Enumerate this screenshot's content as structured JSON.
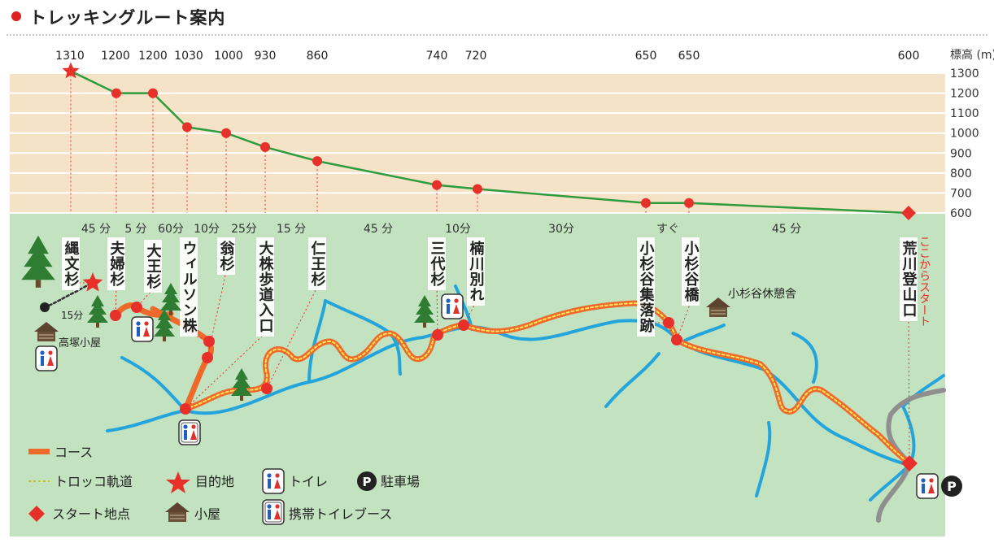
{
  "title": "トレッキングルート案内",
  "colors": {
    "accent_red": "#e8302a",
    "profile_line": "#2e9b3c",
    "sky": "#f5e3c8",
    "ground": "#c2e2c0",
    "river": "#23a5dc",
    "course": "#ee6a2a"
  },
  "chart_data": {
    "type": "line",
    "title": "",
    "ylabel": "標高 (m)",
    "ylim": [
      600,
      1300
    ],
    "yticks": [
      600,
      700,
      800,
      900,
      1000,
      1100,
      1200,
      1300
    ],
    "points": [
      {
        "name": "縄文杉",
        "elevation": 1310,
        "label": "1310",
        "marker": "star"
      },
      {
        "name": "夫婦杉",
        "elevation": 1200,
        "label": "1200",
        "marker": "dot"
      },
      {
        "name": "大王杉",
        "elevation": 1200,
        "label": "1200",
        "marker": "dot"
      },
      {
        "name": "ウィルソン株",
        "elevation": 1030,
        "label": "1030",
        "marker": "dot"
      },
      {
        "name": "翁杉",
        "elevation": 1000,
        "label": "1000",
        "marker": "dot"
      },
      {
        "name": "大株歩道入口",
        "elevation": 930,
        "label": "930",
        "marker": "dot"
      },
      {
        "name": "仁王杉",
        "elevation": 860,
        "label": "860",
        "marker": "dot"
      },
      {
        "name": "三代杉",
        "elevation": 740,
        "label": "740",
        "marker": "dot"
      },
      {
        "name": "楠川別れ",
        "elevation": 720,
        "label": "720",
        "marker": "dot"
      },
      {
        "name": "小杉谷集落跡",
        "elevation": 650,
        "label": "650",
        "marker": "dot"
      },
      {
        "name": "小杉谷橋",
        "elevation": 650,
        "label": "650",
        "marker": "dot"
      },
      {
        "name": "荒川登山口",
        "elevation": 600,
        "label": "600",
        "marker": "diamond"
      }
    ],
    "segment_times": [
      "45 分",
      "5 分",
      "60分",
      "10分",
      "25分",
      "15 分",
      "45 分",
      "10分",
      "30分",
      "すぐ",
      "45 分"
    ]
  },
  "map": {
    "start_label": "ここからスタート",
    "hut_takatsuka": "高塚小屋",
    "hut_kosugidani": "小杉谷休憩舎",
    "jomon_side_time": "15分"
  },
  "legend": {
    "course": "コース",
    "trolley": "トロッコ軌道",
    "destination": "目的地",
    "toilet": "トイレ",
    "parking": "駐車場",
    "parking_icon": "P",
    "start": "スタート地点",
    "hut": "小屋",
    "portable_toilet": "携帯トイレブース"
  }
}
